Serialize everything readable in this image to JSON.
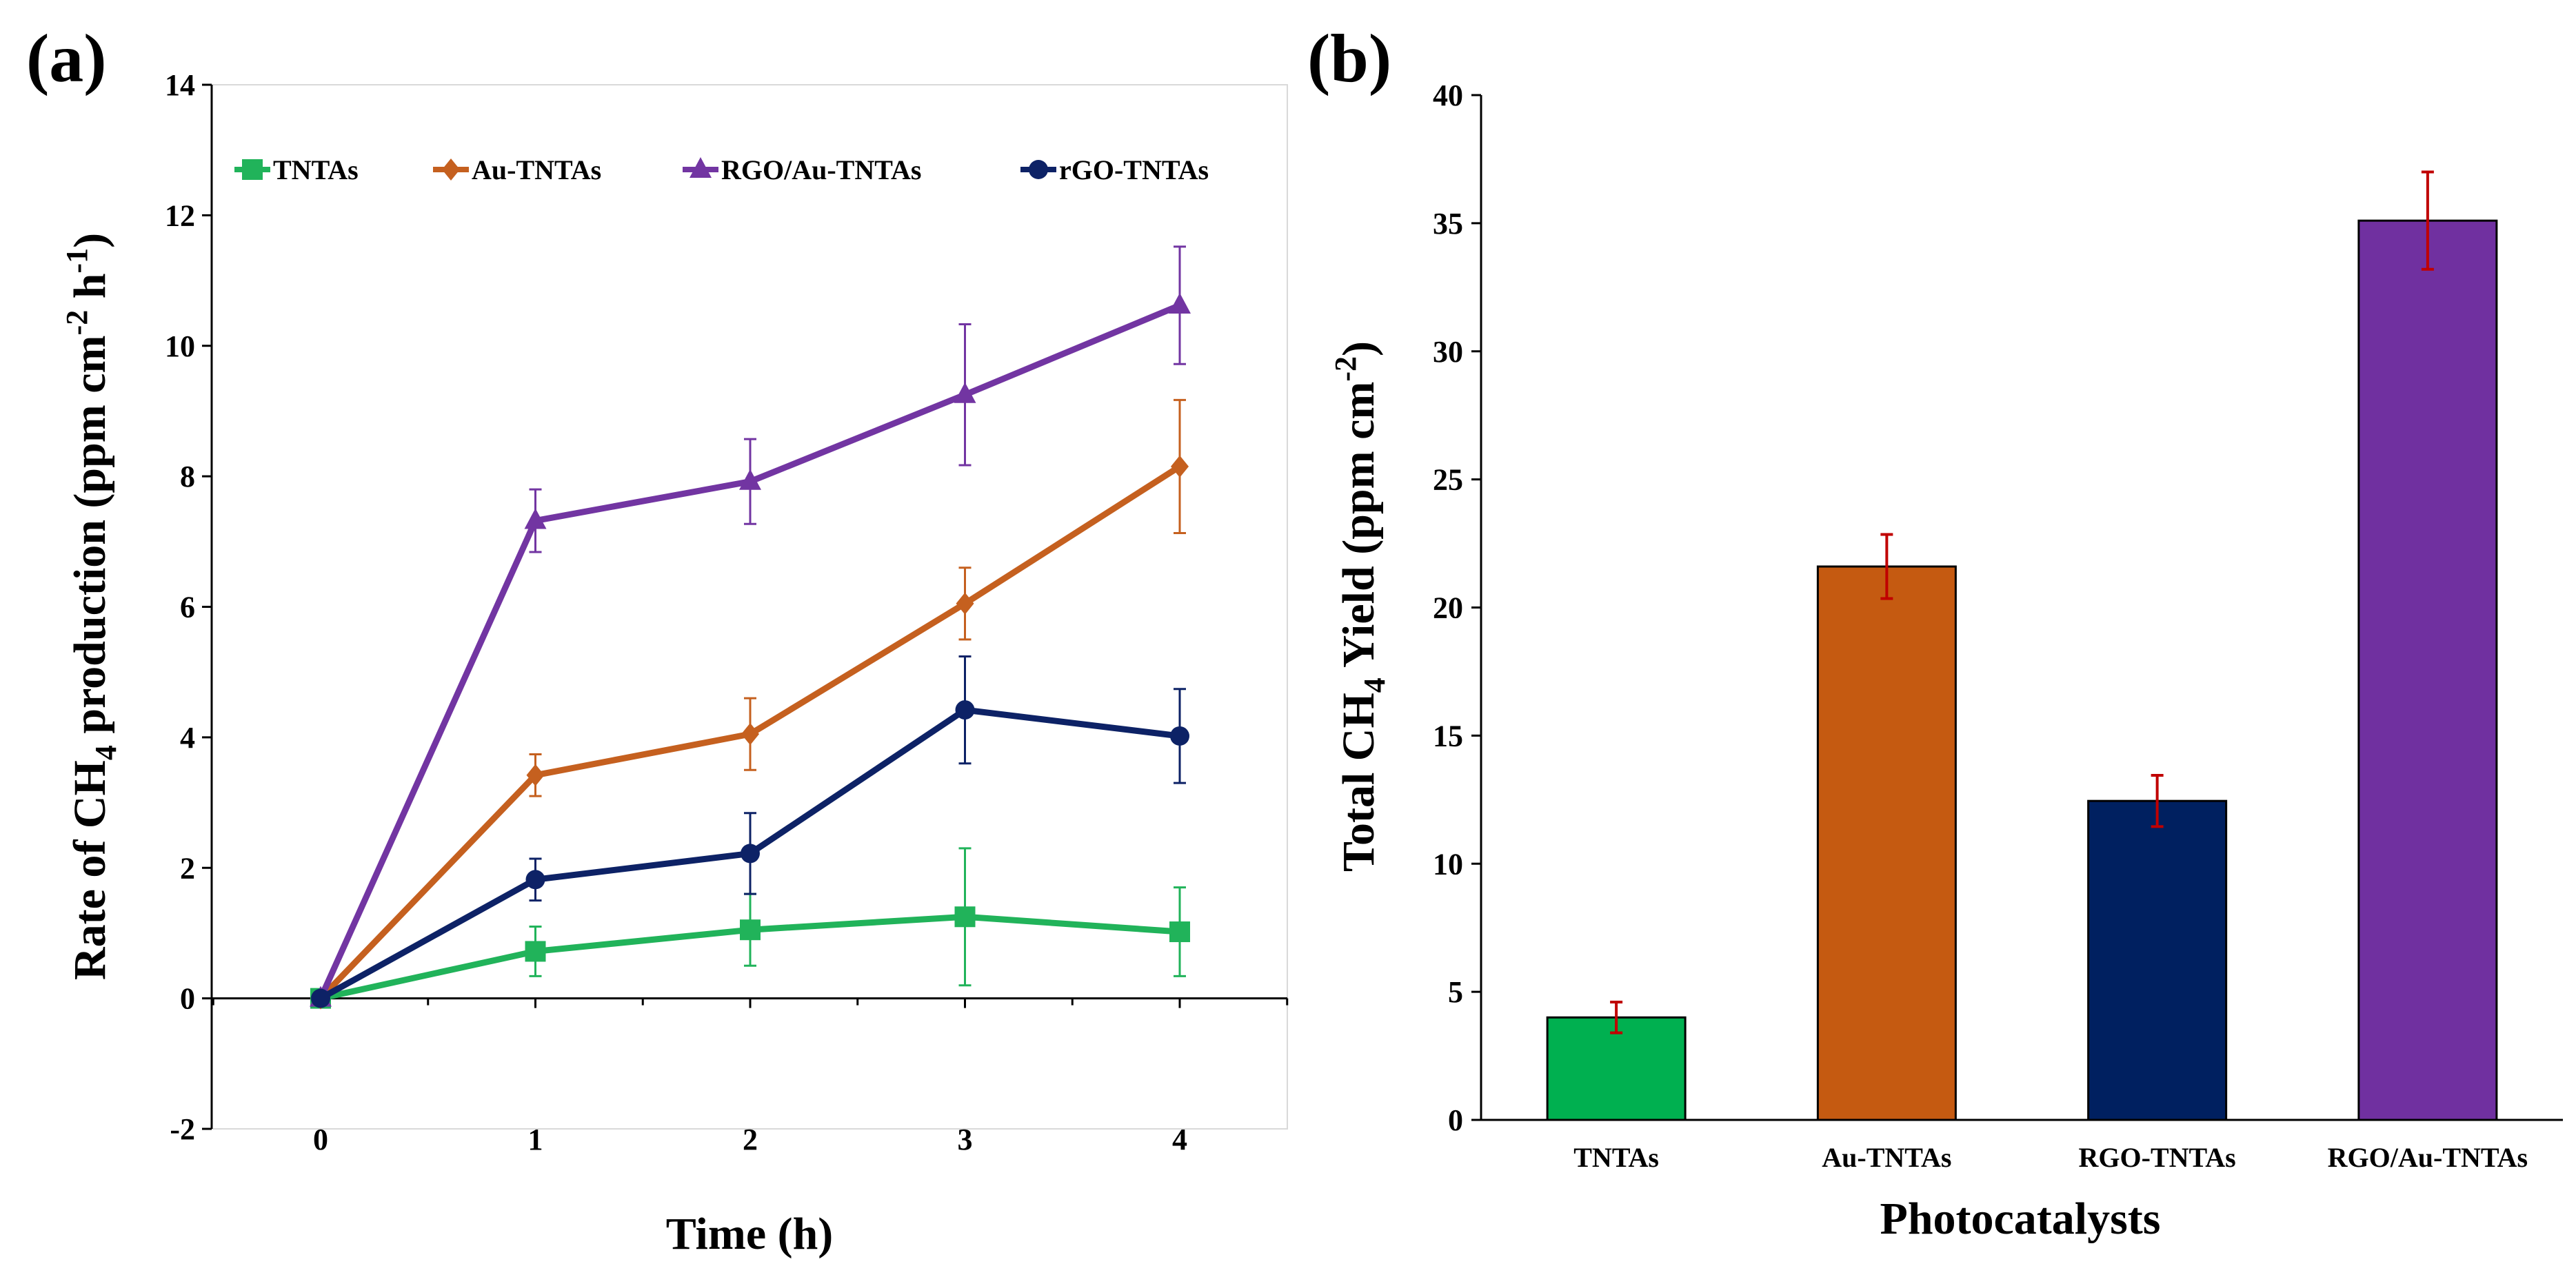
{
  "chart_data": [
    {
      "type": "line",
      "panel_label": "(a)",
      "xlabel": "Time (h)",
      "ylabel_parts": [
        "Rate of CH",
        "4",
        " production (ppm cm",
        "-2",
        " h",
        "-1",
        ")"
      ],
      "x": [
        0,
        1,
        2,
        3,
        4
      ],
      "x_ticks": [
        "0",
        "1",
        "2",
        "3",
        "4"
      ],
      "ylim": [
        -2,
        14
      ],
      "y_ticks": [
        "-2",
        "0",
        "2",
        "4",
        "6",
        "8",
        "10",
        "12",
        "14"
      ],
      "legend_position": "top",
      "series": [
        {
          "name": "TNTAs",
          "color": "#21b35a",
          "marker": "square",
          "values": [
            0,
            0.72,
            1.05,
            1.25,
            1.02
          ],
          "errors": [
            0,
            0.38,
            0.55,
            1.05,
            0.68
          ]
        },
        {
          "name": "Au-TNTAs",
          "color": "#c5601f",
          "marker": "diamond",
          "values": [
            0,
            3.42,
            4.05,
            6.05,
            8.15
          ],
          "errors": [
            0,
            0.32,
            0.55,
            0.55,
            1.02
          ]
        },
        {
          "name": "RGO/Au-TNTAs",
          "color": "#7235a2",
          "marker": "triangle",
          "values": [
            0,
            7.32,
            7.92,
            9.25,
            10.62
          ],
          "errors": [
            0,
            0.48,
            0.65,
            1.08,
            0.9
          ]
        },
        {
          "name": "rGO-TNTAs",
          "color": "#0d2266",
          "marker": "circle",
          "values": [
            0,
            1.82,
            2.22,
            4.42,
            4.02
          ],
          "errors": [
            0,
            0.32,
            0.62,
            0.82,
            0.72
          ]
        }
      ]
    },
    {
      "type": "bar",
      "panel_label": "(b)",
      "xlabel": "Photocatalysts",
      "ylabel_parts": [
        "Total CH",
        "4",
        " Yield (ppm cm",
        "-2",
        ")"
      ],
      "categories": [
        "TNTAs",
        "Au-TNTAs",
        "RGO-TNTAs",
        "RGO/Au-TNTAs"
      ],
      "values": [
        4.0,
        21.6,
        12.45,
        35.1
      ],
      "errors": [
        0.6,
        1.25,
        1.0,
        1.9
      ],
      "colors": [
        "#00b050",
        "#c55a11",
        "#002060",
        "#7030a0"
      ],
      "error_color": "#c00000",
      "ylim": [
        0,
        40
      ],
      "y_ticks": [
        "0",
        "5",
        "10",
        "15",
        "20",
        "25",
        "30",
        "35",
        "40"
      ]
    }
  ]
}
